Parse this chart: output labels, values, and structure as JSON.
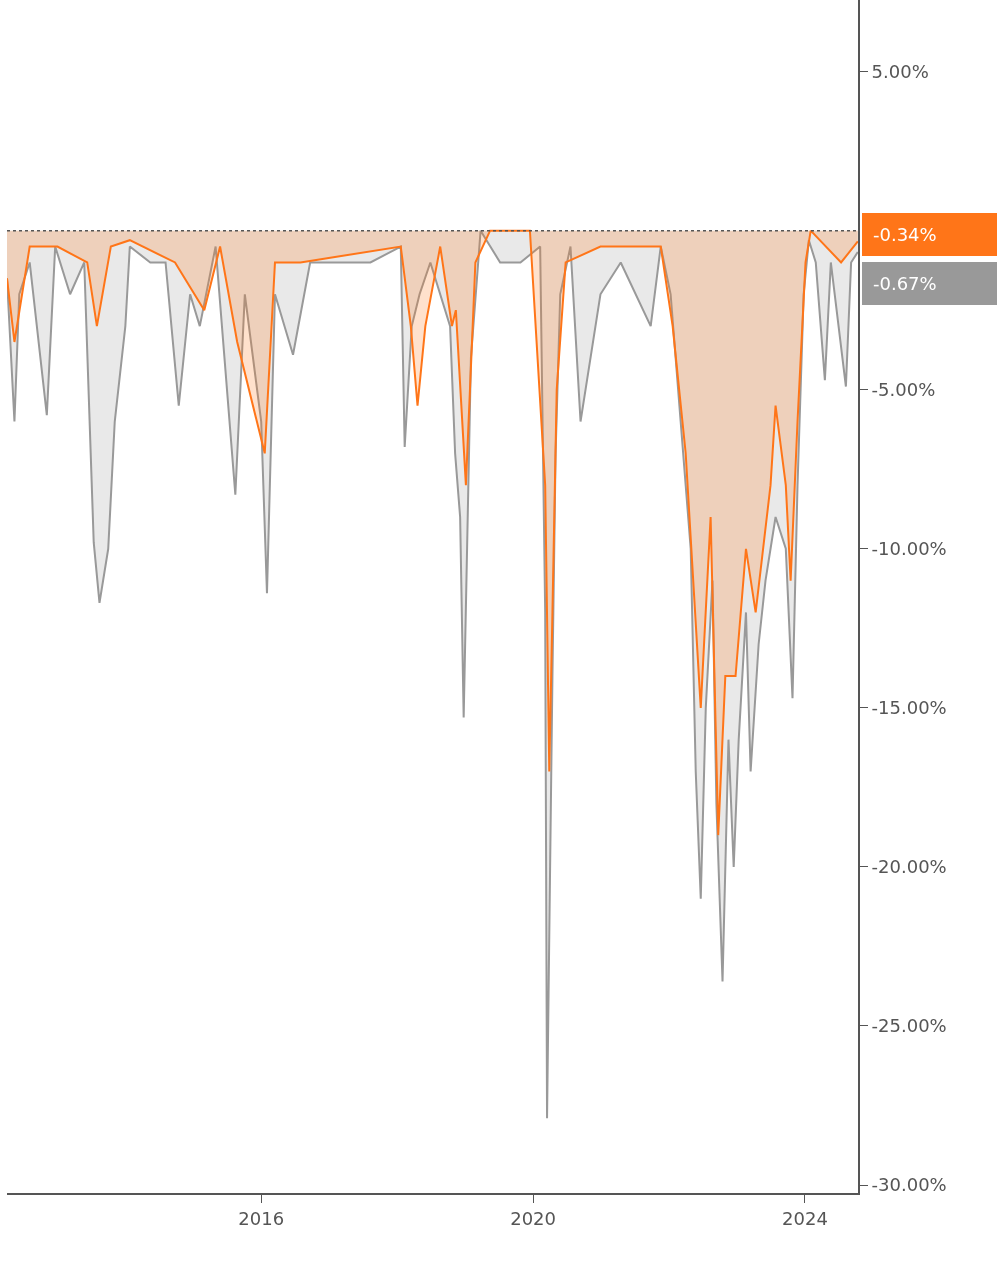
{
  "chart_data": {
    "type": "area",
    "x": [
      "2012-04-05",
      "2012-05-15",
      "2012-06-10",
      "2012-08-05",
      "2012-11-05",
      "2012-12-20",
      "2013-03-10",
      "2013-05-25",
      "2013-07-15",
      "2013-08-15",
      "2013-10-01",
      "2013-11-05",
      "2014-01-01",
      "2014-01-25",
      "2014-05-15",
      "2014-08-05",
      "2014-10-15",
      "2014-12-15",
      "2015-02-05",
      "2015-05-01",
      "2015-08-15",
      "2015-10-05",
      "2016-01-01",
      "2016-02-01",
      "2016-03-15",
      "2016-06-20",
      "2016-09-20",
      "2017-03-01",
      "2017-08-10",
      "2018-01-20",
      "2018-02-10",
      "2018-03-20",
      "2018-05-01",
      "2018-06-28",
      "2018-10-12",
      "2018-11-08",
      "2018-12-05",
      "2018-12-24",
      "2019-02-01",
      "2019-03-25",
      "2019-07-08",
      "2019-10-25",
      "2020-02-08",
      "2020-03-06",
      "2020-03-16",
      "2020-04-14",
      "2020-05-01",
      "2020-05-26",
      "2020-07-20",
      "2020-09-12",
      "2020-12-28",
      "2021-04-16",
      "2021-09-24",
      "2021-11-17",
      "2022-01-09",
      "2022-03-04",
      "2022-04-27",
      "2022-05-24",
      "2022-06-20",
      "2022-07-17",
      "2022-08-22",
      "2022-09-12",
      "2022-10-15",
      "2022-11-16",
      "2022-12-14",
      "2023-01-10",
      "2023-02-18",
      "2023-03-15",
      "2023-04-27",
      "2023-06-03",
      "2023-07-27",
      "2023-09-20",
      "2023-10-26",
      "2023-11-22",
      "2023-12-25",
      "2024-01-22",
      "2024-02-28",
      "2024-04-17",
      "2024-05-19",
      "2024-08-08",
      "2024-09-05",
      "2024-10-11"
    ],
    "series": [
      {
        "color": "#999999",
        "values": [
          -1.5,
          -6,
          -2,
          -1,
          -5.8,
          -0.5,
          -2,
          -1,
          -9.8,
          -11.7,
          -10,
          -6,
          -3,
          -0.5,
          -1,
          -1,
          -5.5,
          -2,
          -3,
          -0.5,
          -8.3,
          -2,
          -6,
          -11.4,
          -2,
          -3.9,
          -1,
          -1,
          -1,
          -0.5,
          -6.8,
          -3,
          -2,
          -1,
          -3,
          -7,
          -9,
          -15.3,
          -4,
          0,
          -1,
          -1,
          -0.5,
          -12,
          -27.9,
          -14,
          -7,
          -2,
          -0.5,
          -6,
          -2,
          -1,
          -3,
          -0.5,
          -2,
          -6,
          -10,
          -17,
          -21,
          -15,
          -11,
          -18,
          -23.6,
          -16,
          -20,
          -16,
          -12,
          -17,
          -13,
          -11,
          -9,
          -10,
          -14.7,
          -8,
          -2,
          -0.3,
          -1,
          -4.7,
          -1,
          -4.9,
          -1,
          -0.67
        ]
      },
      {
        "color": "#ff7518",
        "x": [
          "2012-04-05",
          "2012-05-15",
          "2012-08-05",
          "2013-01-01",
          "2013-06-10",
          "2013-08-01",
          "2013-10-15",
          "2014-01-25",
          "2014-09-25",
          "2015-03-01",
          "2015-05-25",
          "2015-08-25",
          "2016-01-20",
          "2016-03-15",
          "2016-07-30",
          "2018-01-20",
          "2018-03-15",
          "2018-04-20",
          "2018-06-01",
          "2018-08-20",
          "2018-10-22",
          "2018-11-12",
          "2019-01-05",
          "2019-02-25",
          "2019-05-15",
          "2019-12-15",
          "2020-03-06",
          "2020-03-28",
          "2020-04-14",
          "2020-05-07",
          "2020-06-24",
          "2020-12-28",
          "2021-11-17",
          "2022-01-20",
          "2022-03-31",
          "2022-06-20",
          "2022-08-12",
          "2022-09-22",
          "2022-10-30",
          "2022-12-24",
          "2023-02-18",
          "2023-04-11",
          "2023-06-30",
          "2023-07-27",
          "2023-09-20",
          "2023-10-16",
          "2023-11-22",
          "2024-01-04",
          "2024-02-01",
          "2024-07-13",
          "2024-10-11"
        ],
        "values": [
          -1.5,
          -3.5,
          -0.5,
          -0.5,
          -1,
          -3,
          -0.5,
          -0.3,
          -1,
          -2.5,
          -0.5,
          -3.5,
          -7,
          -1,
          -1,
          -0.5,
          -3,
          -5.5,
          -3,
          -0.5,
          -3,
          -2.5,
          -8,
          -1,
          0,
          0,
          -8,
          -17,
          -12,
          -5,
          -1,
          -0.5,
          -0.5,
          -3,
          -7,
          -15,
          -9,
          -19,
          -14,
          -14,
          -10,
          -12,
          -8,
          -5.5,
          -8,
          -11,
          -6,
          -1,
          0,
          -1,
          -0.34
        ]
      }
    ],
    "xlim": [
      "2012-04-05",
      "2024-10-12"
    ],
    "xticks": [
      {
        "value": "2016-01-01",
        "label": "2016"
      },
      {
        "value": "2020-01-01",
        "label": "2020"
      },
      {
        "value": "2024-01-01",
        "label": "2024"
      }
    ],
    "ylim": [
      -30.25,
      7.25
    ],
    "yticks": [
      {
        "value": 5,
        "label": "5.00%"
      },
      {
        "value": -5,
        "label": "-5.00%"
      },
      {
        "value": -10,
        "label": "-10.00%"
      },
      {
        "value": -15,
        "label": "-15.00%"
      },
      {
        "value": -20,
        "label": "-20.00%"
      },
      {
        "value": -25,
        "label": "-25.00%"
      },
      {
        "value": -30,
        "label": "-30.00%"
      }
    ],
    "grid": false,
    "ref_lines": [
      {
        "axis": "y",
        "value": 0,
        "line_style": "dotted",
        "color": "#555555"
      }
    ],
    "annotations": [
      {
        "text": "-0.34%",
        "x": "2024-10-11",
        "y": -0.34
      },
      {
        "text": "-0.67%",
        "x": "2024-10-11",
        "y": -0.67
      }
    ]
  }
}
